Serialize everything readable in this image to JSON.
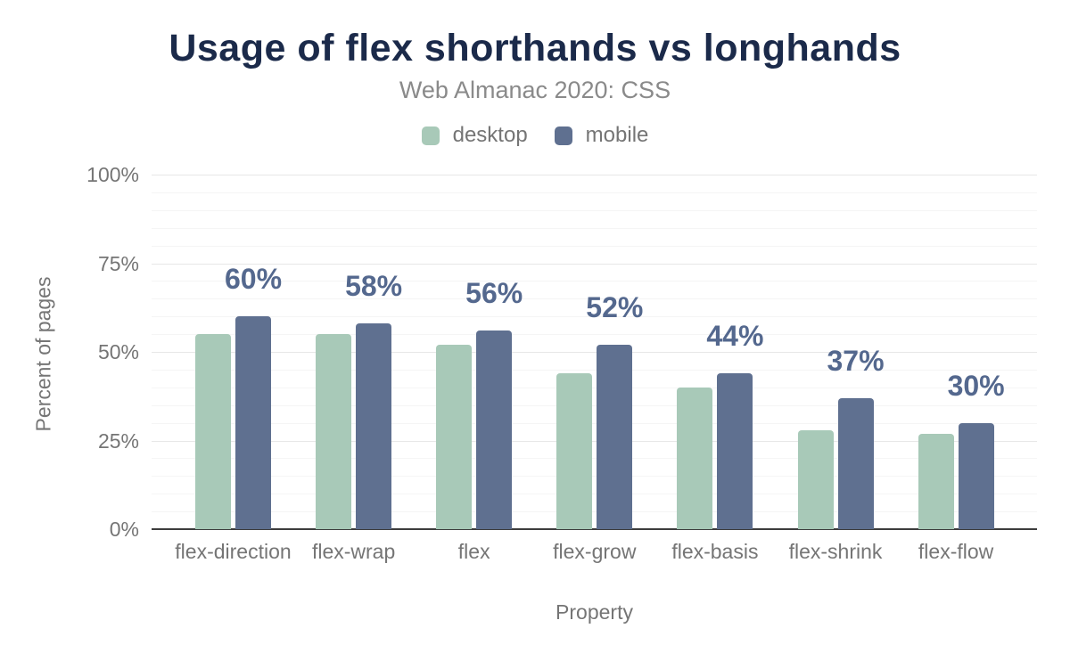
{
  "chart_data": {
    "type": "bar",
    "title": "Usage of flex shorthands vs longhands",
    "subtitle": "Web Almanac 2020: CSS",
    "xlabel": "Property",
    "ylabel": "Percent of pages",
    "categories": [
      "flex-direction",
      "flex-wrap",
      "flex",
      "flex-grow",
      "flex-basis",
      "flex-shrink",
      "flex-flow"
    ],
    "series": [
      {
        "name": "desktop",
        "color": "#a8c9b8",
        "values": [
          55,
          55,
          52,
          44,
          40,
          28,
          27
        ]
      },
      {
        "name": "mobile",
        "color": "#5f7090",
        "values": [
          60,
          58,
          56,
          52,
          44,
          37,
          30
        ]
      }
    ],
    "bar_labels": [
      "60%",
      "58%",
      "56%",
      "52%",
      "44%",
      "37%",
      "30%"
    ],
    "bar_labels_on_series": "mobile",
    "ylim": [
      0,
      100
    ],
    "ytick_values": [
      0,
      25,
      50,
      75,
      100
    ],
    "ytick_labels": [
      "0%",
      "25%",
      "50%",
      "75%",
      "100%"
    ],
    "minor_grid_step": 5,
    "grid": "horizontal",
    "legend_position": "top"
  },
  "colors": {
    "title": "#1b2a4a",
    "subtitle": "#8a8a8a",
    "muted_text": "#757575",
    "value_label": "#54688e",
    "grid_major": "#e7e7e7",
    "grid_minor": "#f5f5f5",
    "axis_line": "#3d3d3d",
    "desktop_series": "#a8c9b8",
    "mobile_series": "#5f7090",
    "background": "#ffffff"
  }
}
